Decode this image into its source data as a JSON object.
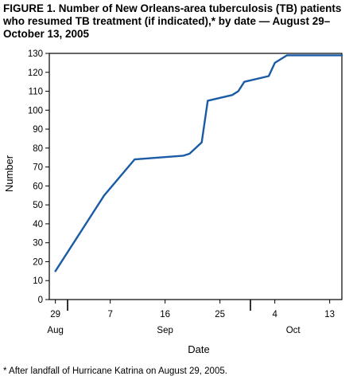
{
  "title": "FIGURE 1. Number of New Orleans-area tuberculosis (TB) patients who resumed TB treatment (if indicated),* by date — August 29–October 13, 2005",
  "footnote": "* After landfall of Hurricane Katrina on August 29, 2005.",
  "colors": {
    "line": "#1a5ba6",
    "axis": "#000000"
  },
  "chart_data": {
    "type": "line",
    "title": "FIGURE 1. Number of New Orleans-area tuberculosis (TB) patients who resumed TB treatment (if indicated),* by date — August 29–October 13, 2005",
    "xlabel": "Date",
    "ylabel": "Number",
    "ylim": [
      0,
      130
    ],
    "yticks": [
      0,
      10,
      20,
      30,
      40,
      50,
      60,
      70,
      80,
      90,
      100,
      110,
      120,
      130
    ],
    "xlim": [
      "2005-08-28",
      "2005-10-15"
    ],
    "xticks": [
      {
        "date": "2005-08-29",
        "label": "29"
      },
      {
        "date": "2005-09-07",
        "label": "7"
      },
      {
        "date": "2005-09-16",
        "label": "16"
      },
      {
        "date": "2005-09-25",
        "label": "25"
      },
      {
        "date": "2005-10-04",
        "label": "4"
      },
      {
        "date": "2005-10-13",
        "label": "13"
      }
    ],
    "month_labels": [
      {
        "date": "2005-08-29",
        "label": "Aug"
      },
      {
        "date": "2005-09-16",
        "label": "Sep"
      },
      {
        "date": "2005-10-07",
        "label": "Oct"
      }
    ],
    "month_dividers": [
      "2005-08-31",
      "2005-09-30"
    ],
    "grid": false,
    "series": [
      {
        "x": [
          "2005-08-29",
          "2005-09-06",
          "2005-09-11",
          "2005-09-19",
          "2005-09-20",
          "2005-09-22",
          "2005-09-23",
          "2005-09-27",
          "2005-09-28",
          "2005-09-29",
          "2005-10-03",
          "2005-10-04",
          "2005-10-06",
          "2005-10-15"
        ],
        "y": [
          15,
          55,
          74,
          76,
          77,
          83,
          105,
          108,
          110,
          115,
          118,
          125,
          129,
          129
        ]
      }
    ]
  }
}
